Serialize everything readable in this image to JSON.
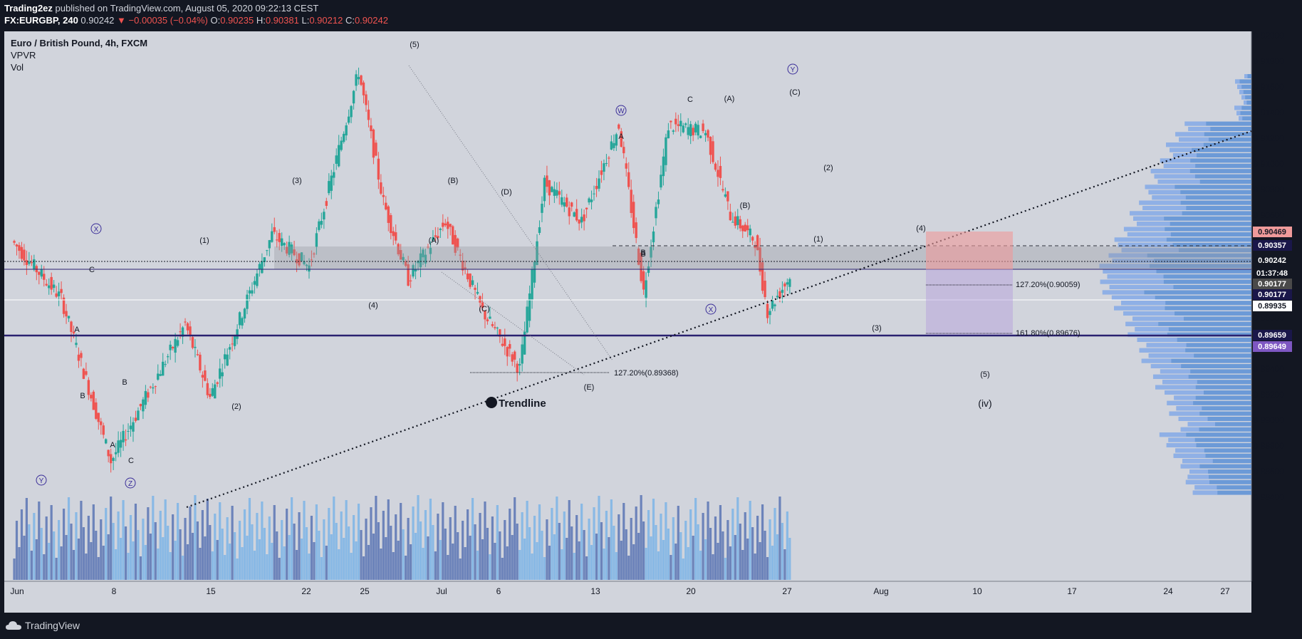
{
  "header": {
    "publisher": "Trading2ez",
    "published_text": " published on TradingView.com, August 05, 2020 09:22:13 CEST",
    "symbol": "FX:EURGBP, 240",
    "last": "0.90242",
    "change": "−0.00035 (−0.04%)",
    "o_label": "O:",
    "o_val": "0.90235",
    "h_label": "H:",
    "h_val": "0.90381",
    "l_label": "L:",
    "l_val": "0.90212",
    "c_label": "C:",
    "c_val": "0.90242"
  },
  "legend": {
    "title": "Euro / British Pound, 4h, FXCM",
    "ind1": "VPVR",
    "ind2": "Vol"
  },
  "footer": {
    "brand": "TradingView"
  },
  "colors": {
    "background": "#131722",
    "chart_bg": "#d1d4dc",
    "up": "#26a69a",
    "down": "#ef5350",
    "vol_up": "#7cb4e6",
    "vol_down": "#5b74b4",
    "horizontal_line": "#2a2170"
  },
  "chart_data": {
    "type": "candlestick",
    "symbol": "EURGBP",
    "timeframe": "4h",
    "ylim": [
      0.883,
      0.921
    ],
    "x_ticks": [
      "Jun",
      "8",
      "15",
      "22",
      "25",
      "Jul",
      "6",
      "13",
      "20",
      "27",
      "Aug",
      "10",
      "17",
      "24",
      "27"
    ],
    "y_ticks": [
      "0.92000",
      "0.91800",
      "0.91600",
      "0.91400",
      "0.91200",
      "0.91000",
      "0.90800",
      "0.90600",
      "0.90400",
      "0.90200",
      "0.90000",
      "0.89800",
      "0.89600",
      "0.89400",
      "0.89200",
      "0.89000",
      "0.88800",
      "0.88600",
      "0.88400"
    ],
    "price_labels": [
      {
        "value": "0.90469",
        "color": "#ef9a9a"
      },
      {
        "value": "0.90357",
        "color": "#1a174a"
      },
      {
        "value": "0.90242",
        "color": "#131722"
      },
      {
        "value": "01:37:48",
        "color": "#131722"
      },
      {
        "value": "0.90177",
        "color": "#4a4a4a"
      },
      {
        "value": "0.90177",
        "color": "#1a174a"
      },
      {
        "value": "0.89935",
        "color": "#ffffff"
      },
      {
        "value": "0.89659",
        "color": "#1a174a"
      },
      {
        "value": "0.89649",
        "color": "#7e57c2"
      }
    ],
    "key_points": [
      {
        "date": "Jun 1",
        "close": 0.904
      },
      {
        "date": "Jun 5",
        "close": 0.8995
      },
      {
        "date": "Jun 9",
        "close": 0.8868
      },
      {
        "date": "Jun 15",
        "close": 0.8975
      },
      {
        "date": "Jun 17",
        "close": 0.8918
      },
      {
        "date": "Jun 22",
        "close": 0.9045
      },
      {
        "date": "Jun 25",
        "close": 0.902
      },
      {
        "date": "Jun 29",
        "close": 0.9172
      },
      {
        "date": "Jul 1",
        "close": 0.907
      },
      {
        "date": "Jul 3",
        "close": 0.901
      },
      {
        "date": "Jul 6",
        "close": 0.9055
      },
      {
        "date": "Jul 9",
        "close": 0.8985
      },
      {
        "date": "Jul 12",
        "close": 0.894
      },
      {
        "date": "Jul 14",
        "close": 0.9085
      },
      {
        "date": "Jul 17",
        "close": 0.9055
      },
      {
        "date": "Jul 20",
        "close": 0.913
      },
      {
        "date": "Jul 22",
        "close": 0.9
      },
      {
        "date": "Jul 24",
        "close": 0.913
      },
      {
        "date": "Jul 27",
        "close": 0.9125
      },
      {
        "date": "Jul 29",
        "close": 0.906
      },
      {
        "date": "Jul 31",
        "close": 0.904
      },
      {
        "date": "Aug 1",
        "close": 0.8985
      },
      {
        "date": "Aug 4",
        "close": 0.903
      },
      {
        "date": "Aug 5",
        "close": 0.90242
      }
    ],
    "wave_labels": [
      "(5)",
      "(3)",
      "(1)",
      "(4)",
      "C",
      "A",
      "B",
      "A",
      "B",
      "C",
      "(2)",
      "(B)",
      "(A)",
      "(C)",
      "(D)",
      "(E)",
      "A",
      "B",
      "C",
      "(A)",
      "(B)",
      "(C)",
      "(2)",
      "(1)",
      "(3)",
      "(4)",
      "(5)",
      "(iv)"
    ],
    "circled_labels": [
      "X",
      "Y",
      "Z",
      "W",
      "X",
      "Y"
    ],
    "fib_labels": [
      "127.20%(0.90059)",
      "161.80%(0.89676)",
      "127.20%(0.89368)"
    ],
    "annotation": "Trendline",
    "date_labels": [
      "B"
    ]
  }
}
